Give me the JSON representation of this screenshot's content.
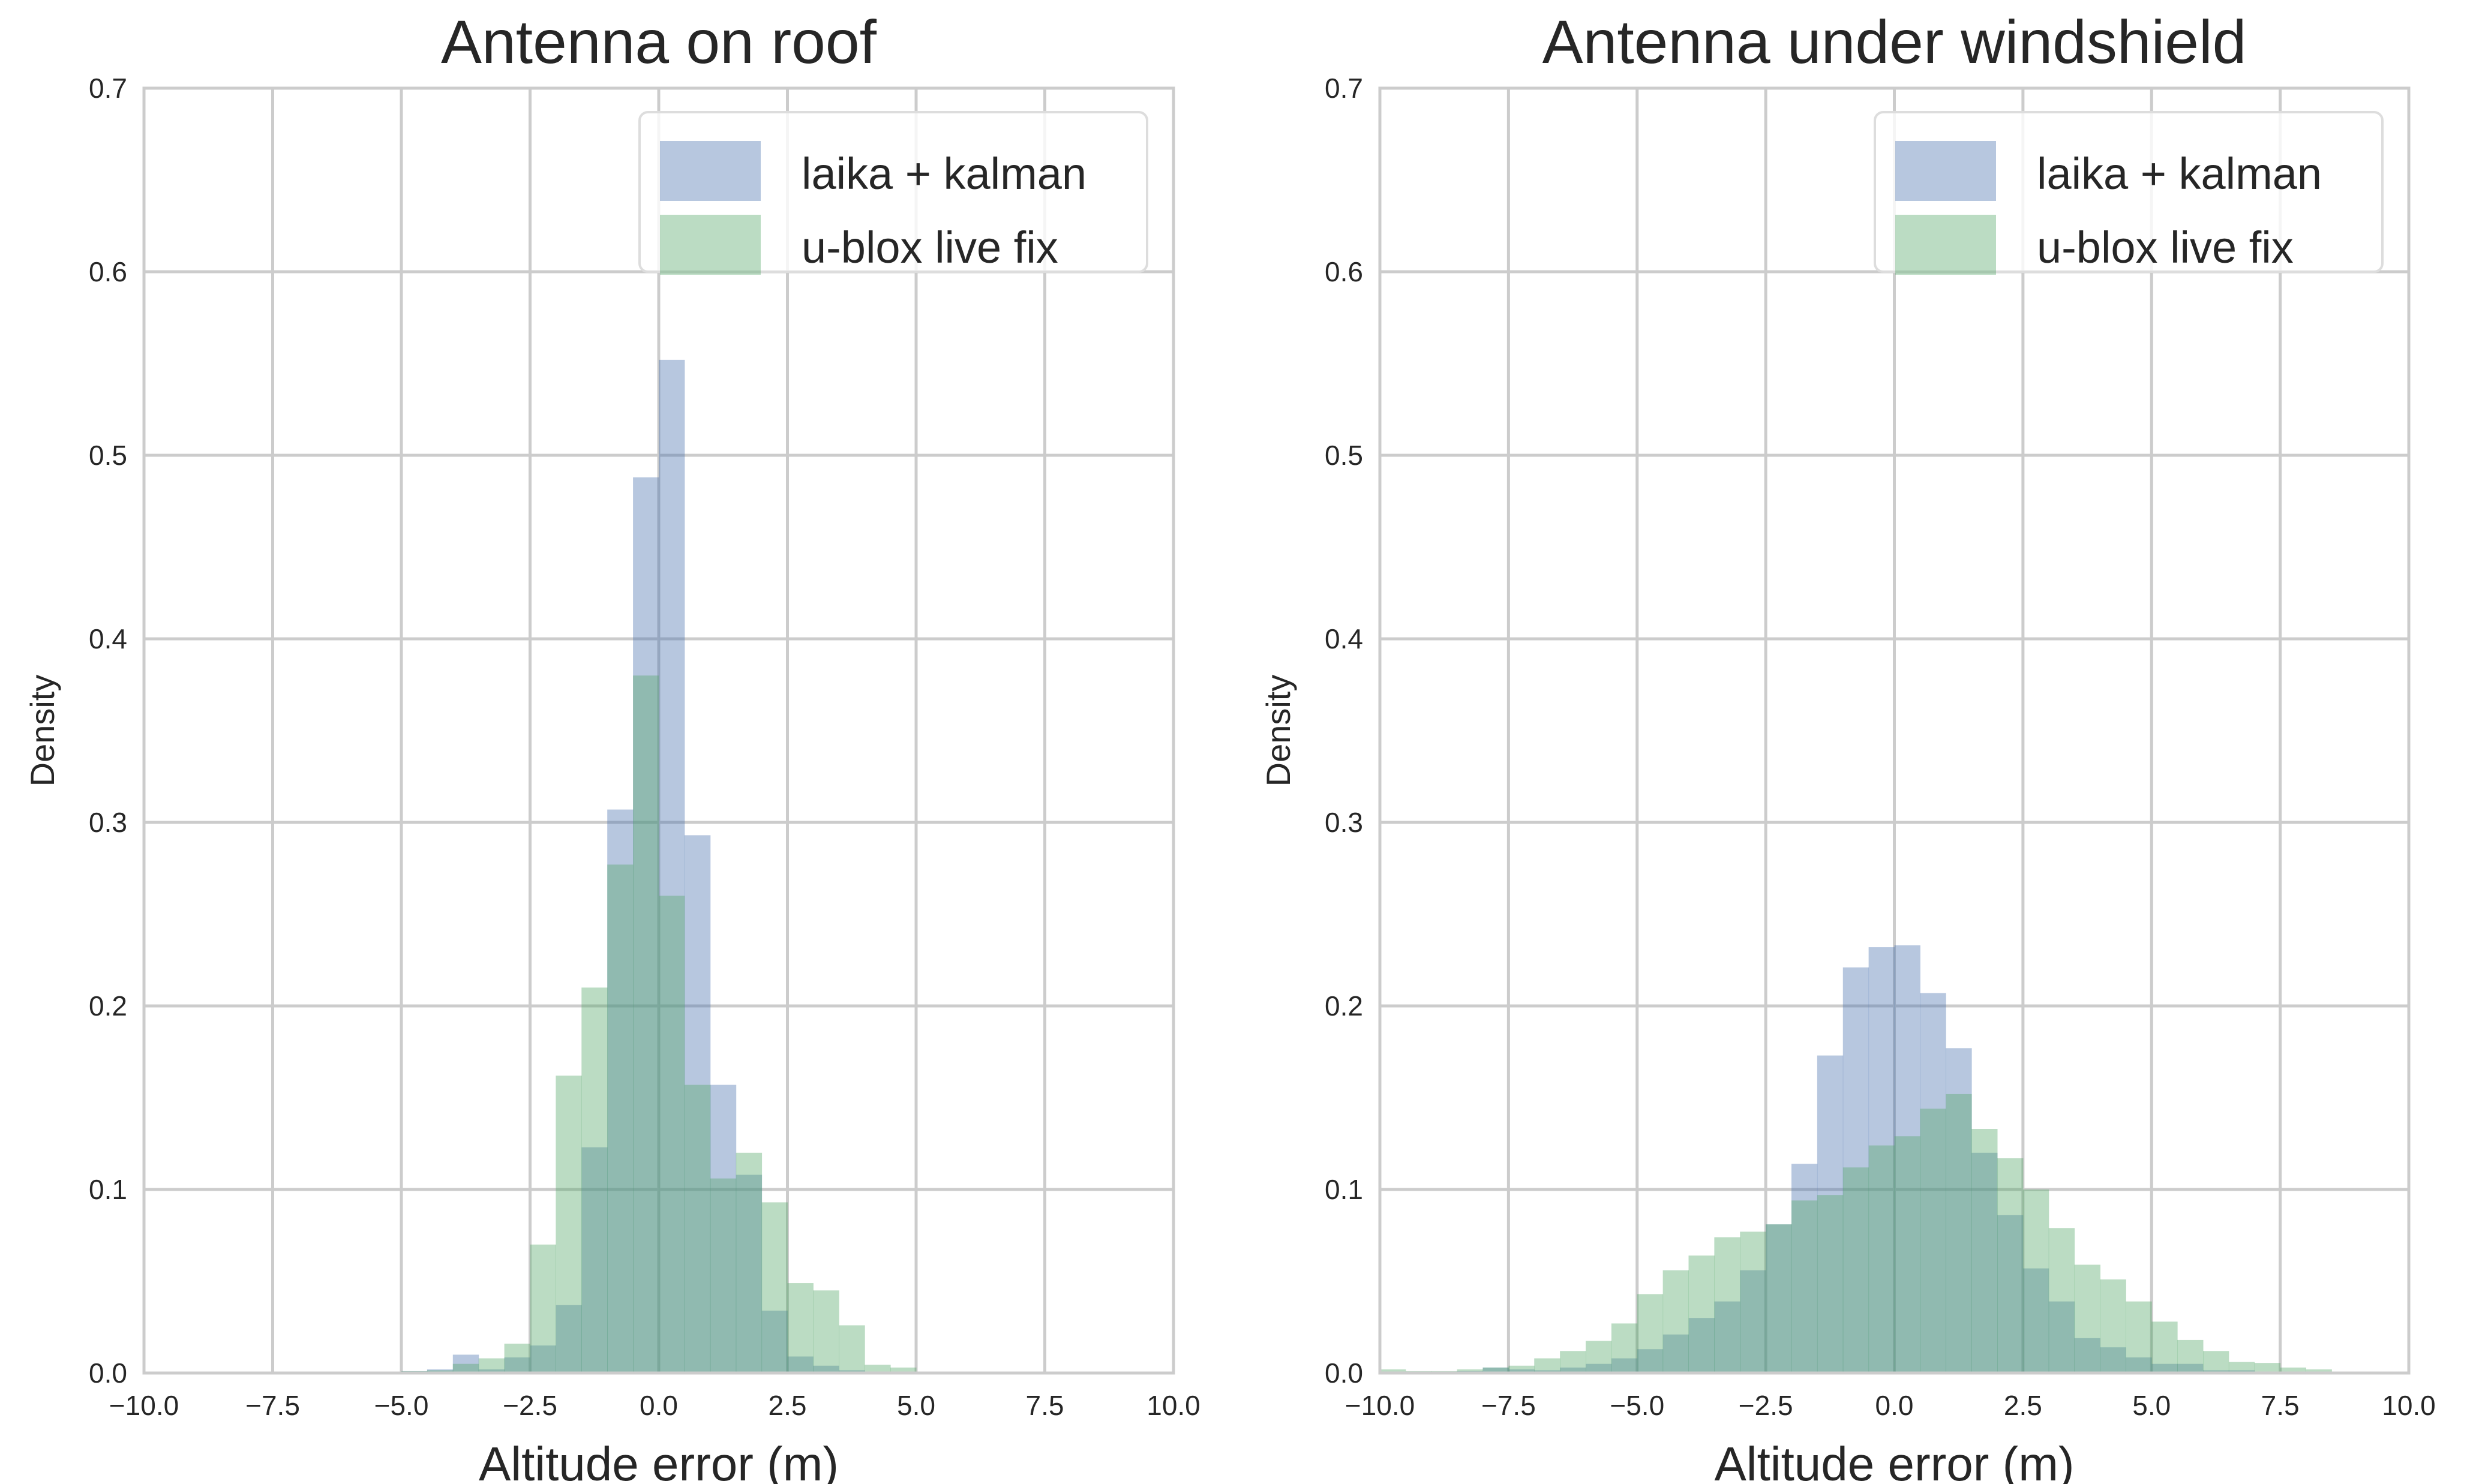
{
  "colors": {
    "laika": "#4c72b0",
    "ublox": "#55a868",
    "grid": "#cccccc",
    "text": "#262626"
  },
  "chart_data": [
    {
      "type": "histogram",
      "title": "Antenna on roof",
      "xlabel": "Altitude error (m)",
      "ylabel": "Density",
      "xlim": [
        -10,
        10
      ],
      "ylim": [
        0,
        0.7
      ],
      "xticks": [
        "−10.0",
        "−7.5",
        "−5.0",
        "−2.5",
        "0.0",
        "2.5",
        "5.0",
        "7.5",
        "10.0"
      ],
      "yticks": [
        "0.0",
        "0.1",
        "0.2",
        "0.3",
        "0.4",
        "0.5",
        "0.6",
        "0.7"
      ],
      "grid": true,
      "legend_position": "top-right",
      "bin_start": -5,
      "bin_width": 0.5,
      "series": [
        {
          "name": "laika + kalman",
          "color": "#4c72b0",
          "values": [
            0.001,
            0.002,
            0.01,
            0.002,
            0.0085,
            0.015,
            0.037,
            0.123,
            0.307,
            0.488,
            0.552,
            0.293,
            0.157,
            0.108,
            0.034,
            0.009,
            0.004,
            0.0015,
            0,
            0
          ]
        },
        {
          "name": "u-blox live fix",
          "color": "#55a868",
          "values": [
            0.001,
            0.0015,
            0.005,
            0.008,
            0.016,
            0.07,
            0.162,
            0.21,
            0.277,
            0.38,
            0.26,
            0.157,
            0.106,
            0.12,
            0.093,
            0.049,
            0.045,
            0.026,
            0.0045,
            0.003
          ]
        }
      ]
    },
    {
      "type": "histogram",
      "title": "Antenna under windshield",
      "xlabel": "Altitude error (m)",
      "ylabel": "Density",
      "xlim": [
        -10,
        10
      ],
      "ylim": [
        0,
        0.7
      ],
      "xticks": [
        "−10.0",
        "−7.5",
        "−5.0",
        "−2.5",
        "0.0",
        "2.5",
        "5.0",
        "7.5",
        "10.0"
      ],
      "yticks": [
        "0.0",
        "0.1",
        "0.2",
        "0.3",
        "0.4",
        "0.5",
        "0.6",
        "0.7"
      ],
      "grid": true,
      "legend_position": "top-right",
      "bin_start": -10,
      "bin_width": 0.5,
      "series": [
        {
          "name": "laika + kalman",
          "color": "#4c72b0",
          "values": [
            0,
            0,
            0,
            0.001,
            0.003,
            0.002,
            0.0015,
            0.003,
            0.005,
            0.008,
            0.013,
            0.021,
            0.03,
            0.039,
            0.056,
            0.081,
            0.114,
            0.173,
            0.221,
            0.232,
            0.233,
            0.207,
            0.177,
            0.12,
            0.086,
            0.057,
            0.039,
            0.019,
            0.014,
            0.0085,
            0.005,
            0.005,
            0.0015,
            0.0015,
            0,
            0,
            0,
            0,
            0,
            0
          ]
        },
        {
          "name": "u-blox live fix",
          "color": "#55a868",
          "values": [
            0.002,
            0.001,
            0.001,
            0.002,
            0.003,
            0.004,
            0.008,
            0.012,
            0.0175,
            0.027,
            0.043,
            0.056,
            0.064,
            0.074,
            0.077,
            0.081,
            0.094,
            0.097,
            0.112,
            0.124,
            0.129,
            0.144,
            0.152,
            0.133,
            0.117,
            0.1,
            0.079,
            0.059,
            0.051,
            0.039,
            0.028,
            0.018,
            0.012,
            0.006,
            0.0055,
            0.003,
            0.002,
            0,
            0,
            0
          ]
        }
      ]
    }
  ]
}
